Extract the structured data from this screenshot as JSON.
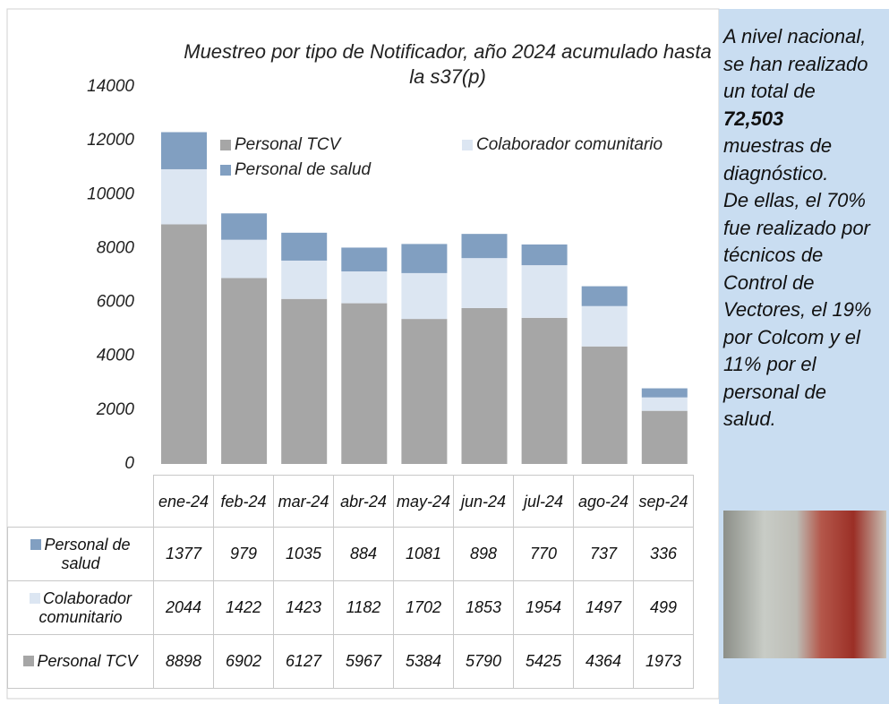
{
  "chart_data": {
    "type": "stacked-bar",
    "title": "Muestreo por tipo de Notificador, año 2024 acumulado hasta la s37(p)",
    "categories": [
      "ene-24",
      "feb-24",
      "mar-24",
      "abr-24",
      "may-24",
      "jun-24",
      "jul-24",
      "ago-24",
      "sep-24"
    ],
    "series": [
      {
        "name": "Personal TCV",
        "color": "#a6a6a6",
        "values": [
          8898,
          6902,
          6127,
          5967,
          5384,
          5790,
          5425,
          4364,
          1973
        ]
      },
      {
        "name": "Colaborador comunitario",
        "color": "#dce6f2",
        "values": [
          2044,
          1422,
          1423,
          1182,
          1702,
          1853,
          1954,
          1497,
          499
        ]
      },
      {
        "name": "Personal de salud",
        "color": "#819fc1",
        "values": [
          1377,
          979,
          1035,
          884,
          1081,
          898,
          770,
          737,
          336
        ]
      }
    ],
    "ylim": [
      0,
      14000
    ],
    "yticks": [
      0,
      2000,
      4000,
      6000,
      8000,
      10000,
      12000,
      14000
    ],
    "grid": false
  },
  "sidebar": {
    "lines": [
      "A nivel nacional,",
      "se han realizado",
      "un total de",
      "72,503",
      "muestras de",
      "diagnóstico.",
      "De ellas, el 70%",
      "fue realizado por",
      "técnicos de",
      "Control de",
      "Vectores, el 19%",
      "por Colcom y el",
      "11% por el",
      "personal de",
      "salud."
    ],
    "bold_line": 3
  }
}
